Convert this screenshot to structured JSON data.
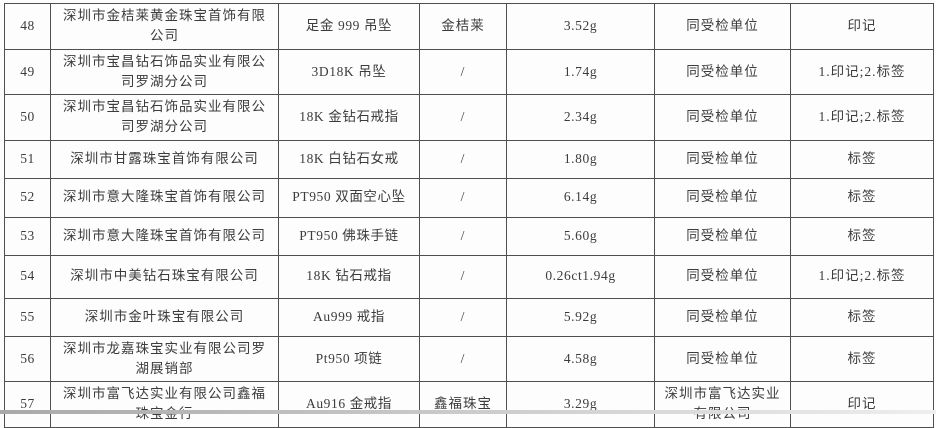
{
  "colors": {
    "page_background": "#fdfdfd",
    "grid_border": "#4f4f4f",
    "text": "#3c3c3c",
    "bottom_shadow": "#bdbdbd"
  },
  "table": {
    "rows": [
      {
        "seq": "48",
        "company": "深圳市金桔莱黄金珠宝首饰有限公司",
        "product": "足金 999 吊坠",
        "brand": "金桔莱",
        "weight": "3.52g",
        "inspected_unit": "同受检单位",
        "mark": "印记"
      },
      {
        "seq": "49",
        "company": "深圳市宝昌钻石饰品实业有限公司罗湖分公司",
        "product": "3D18K 吊坠",
        "brand": "/",
        "weight": "1.74g",
        "inspected_unit": "同受检单位",
        "mark": "1.印记;2.标签"
      },
      {
        "seq": "50",
        "company": "深圳市宝昌钻石饰品实业有限公司罗湖分公司",
        "product": "18K 金钻石戒指",
        "brand": "/",
        "weight": "2.34g",
        "inspected_unit": "同受检单位",
        "mark": "1.印记;2.标签"
      },
      {
        "seq": "51",
        "company": "深圳市甘露珠宝首饰有限公司",
        "product": "18K 白钻石女戒",
        "brand": "/",
        "weight": "1.80g",
        "inspected_unit": "同受检单位",
        "mark": "标签"
      },
      {
        "seq": "52",
        "company": "深圳市意大隆珠宝首饰有限公司",
        "product": "PT950 双面空心坠",
        "brand": "/",
        "weight": "6.14g",
        "inspected_unit": "同受检单位",
        "mark": "标签"
      },
      {
        "seq": "53",
        "company": "深圳市意大隆珠宝首饰有限公司",
        "product": "PT950 佛珠手链",
        "brand": "/",
        "weight": "5.60g",
        "inspected_unit": "同受检单位",
        "mark": "标签"
      },
      {
        "seq": "54",
        "company": "深圳市中美钻石珠宝有限公司",
        "product": "18K 钻石戒指",
        "brand": "/",
        "weight": "0.26ct1.94g",
        "inspected_unit": "同受检单位",
        "mark": "1.印记;2.标签"
      },
      {
        "seq": "55",
        "company": "深圳市金叶珠宝有限公司",
        "product": "Au999 戒指",
        "brand": "/",
        "weight": "5.92g",
        "inspected_unit": "同受检单位",
        "mark": "标签"
      },
      {
        "seq": "56",
        "company": "深圳市龙嘉珠宝实业有限公司罗湖展销部",
        "product": "Pt950 项链",
        "brand": "/",
        "weight": "4.58g",
        "inspected_unit": "同受检单位",
        "mark": "标签"
      },
      {
        "seq": "57",
        "company": "深圳市富飞达实业有限公司鑫福珠宝金行",
        "product": "Au916 金戒指",
        "brand": "鑫福珠宝",
        "weight": "3.29g",
        "inspected_unit": "深圳市富飞达实业有限公司",
        "mark": "印记"
      }
    ]
  }
}
